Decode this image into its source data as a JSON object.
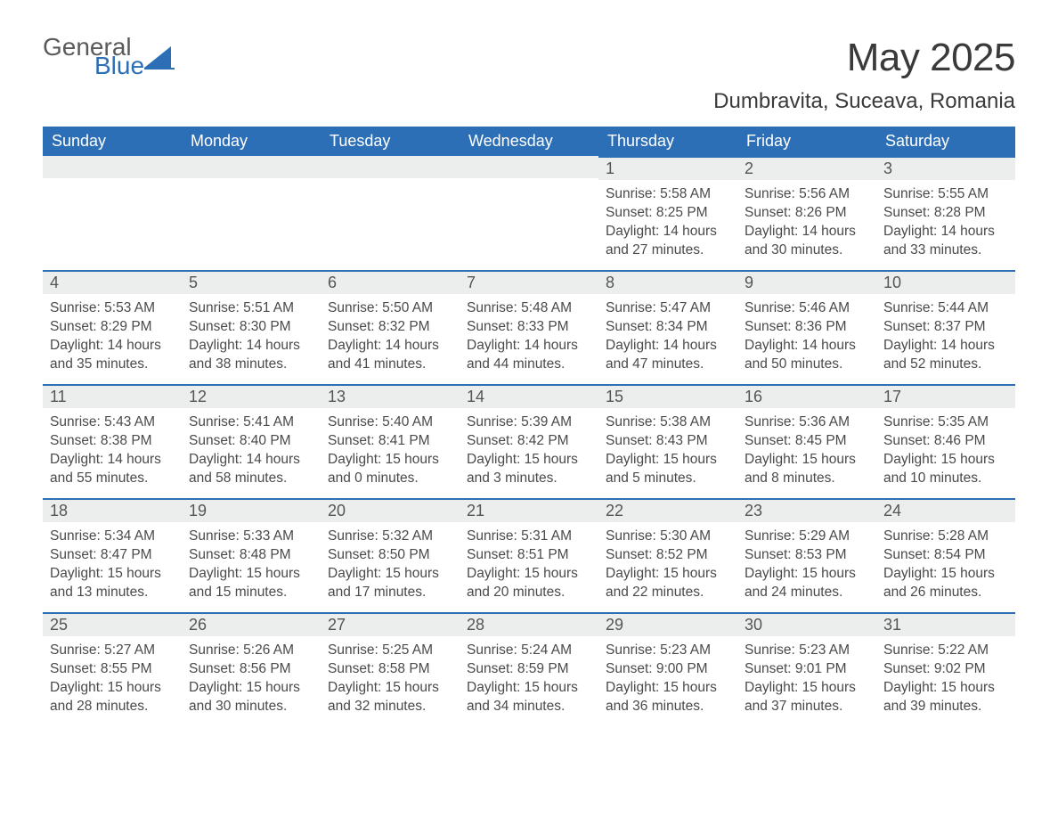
{
  "logo": {
    "general": "General",
    "blue": "Blue",
    "sail_color": "#2d6fb6"
  },
  "header": {
    "month_title": "May 2025",
    "location": "Dumbravita, Suceava, Romania"
  },
  "styling": {
    "header_bg": "#2d6fb6",
    "header_text_color": "#ffffff",
    "daynum_bg": "#eceded",
    "row_top_border": "#2d6fb6",
    "body_text_color": "#4a4a4a",
    "page_bg": "#ffffff",
    "title_fontsize": 44,
    "location_fontsize": 24,
    "dayheader_fontsize": 18,
    "daybody_fontsize": 15.5
  },
  "day_headers": [
    "Sunday",
    "Monday",
    "Tuesday",
    "Wednesday",
    "Thursday",
    "Friday",
    "Saturday"
  ],
  "leading_blanks": 4,
  "days": [
    {
      "n": "1",
      "sunrise": "Sunrise: 5:58 AM",
      "sunset": "Sunset: 8:25 PM",
      "day1": "Daylight: 14 hours",
      "day2": "and 27 minutes."
    },
    {
      "n": "2",
      "sunrise": "Sunrise: 5:56 AM",
      "sunset": "Sunset: 8:26 PM",
      "day1": "Daylight: 14 hours",
      "day2": "and 30 minutes."
    },
    {
      "n": "3",
      "sunrise": "Sunrise: 5:55 AM",
      "sunset": "Sunset: 8:28 PM",
      "day1": "Daylight: 14 hours",
      "day2": "and 33 minutes."
    },
    {
      "n": "4",
      "sunrise": "Sunrise: 5:53 AM",
      "sunset": "Sunset: 8:29 PM",
      "day1": "Daylight: 14 hours",
      "day2": "and 35 minutes."
    },
    {
      "n": "5",
      "sunrise": "Sunrise: 5:51 AM",
      "sunset": "Sunset: 8:30 PM",
      "day1": "Daylight: 14 hours",
      "day2": "and 38 minutes."
    },
    {
      "n": "6",
      "sunrise": "Sunrise: 5:50 AM",
      "sunset": "Sunset: 8:32 PM",
      "day1": "Daylight: 14 hours",
      "day2": "and 41 minutes."
    },
    {
      "n": "7",
      "sunrise": "Sunrise: 5:48 AM",
      "sunset": "Sunset: 8:33 PM",
      "day1": "Daylight: 14 hours",
      "day2": "and 44 minutes."
    },
    {
      "n": "8",
      "sunrise": "Sunrise: 5:47 AM",
      "sunset": "Sunset: 8:34 PM",
      "day1": "Daylight: 14 hours",
      "day2": "and 47 minutes."
    },
    {
      "n": "9",
      "sunrise": "Sunrise: 5:46 AM",
      "sunset": "Sunset: 8:36 PM",
      "day1": "Daylight: 14 hours",
      "day2": "and 50 minutes."
    },
    {
      "n": "10",
      "sunrise": "Sunrise: 5:44 AM",
      "sunset": "Sunset: 8:37 PM",
      "day1": "Daylight: 14 hours",
      "day2": "and 52 minutes."
    },
    {
      "n": "11",
      "sunrise": "Sunrise: 5:43 AM",
      "sunset": "Sunset: 8:38 PM",
      "day1": "Daylight: 14 hours",
      "day2": "and 55 minutes."
    },
    {
      "n": "12",
      "sunrise": "Sunrise: 5:41 AM",
      "sunset": "Sunset: 8:40 PM",
      "day1": "Daylight: 14 hours",
      "day2": "and 58 minutes."
    },
    {
      "n": "13",
      "sunrise": "Sunrise: 5:40 AM",
      "sunset": "Sunset: 8:41 PM",
      "day1": "Daylight: 15 hours",
      "day2": "and 0 minutes."
    },
    {
      "n": "14",
      "sunrise": "Sunrise: 5:39 AM",
      "sunset": "Sunset: 8:42 PM",
      "day1": "Daylight: 15 hours",
      "day2": "and 3 minutes."
    },
    {
      "n": "15",
      "sunrise": "Sunrise: 5:38 AM",
      "sunset": "Sunset: 8:43 PM",
      "day1": "Daylight: 15 hours",
      "day2": "and 5 minutes."
    },
    {
      "n": "16",
      "sunrise": "Sunrise: 5:36 AM",
      "sunset": "Sunset: 8:45 PM",
      "day1": "Daylight: 15 hours",
      "day2": "and 8 minutes."
    },
    {
      "n": "17",
      "sunrise": "Sunrise: 5:35 AM",
      "sunset": "Sunset: 8:46 PM",
      "day1": "Daylight: 15 hours",
      "day2": "and 10 minutes."
    },
    {
      "n": "18",
      "sunrise": "Sunrise: 5:34 AM",
      "sunset": "Sunset: 8:47 PM",
      "day1": "Daylight: 15 hours",
      "day2": "and 13 minutes."
    },
    {
      "n": "19",
      "sunrise": "Sunrise: 5:33 AM",
      "sunset": "Sunset: 8:48 PM",
      "day1": "Daylight: 15 hours",
      "day2": "and 15 minutes."
    },
    {
      "n": "20",
      "sunrise": "Sunrise: 5:32 AM",
      "sunset": "Sunset: 8:50 PM",
      "day1": "Daylight: 15 hours",
      "day2": "and 17 minutes."
    },
    {
      "n": "21",
      "sunrise": "Sunrise: 5:31 AM",
      "sunset": "Sunset: 8:51 PM",
      "day1": "Daylight: 15 hours",
      "day2": "and 20 minutes."
    },
    {
      "n": "22",
      "sunrise": "Sunrise: 5:30 AM",
      "sunset": "Sunset: 8:52 PM",
      "day1": "Daylight: 15 hours",
      "day2": "and 22 minutes."
    },
    {
      "n": "23",
      "sunrise": "Sunrise: 5:29 AM",
      "sunset": "Sunset: 8:53 PM",
      "day1": "Daylight: 15 hours",
      "day2": "and 24 minutes."
    },
    {
      "n": "24",
      "sunrise": "Sunrise: 5:28 AM",
      "sunset": "Sunset: 8:54 PM",
      "day1": "Daylight: 15 hours",
      "day2": "and 26 minutes."
    },
    {
      "n": "25",
      "sunrise": "Sunrise: 5:27 AM",
      "sunset": "Sunset: 8:55 PM",
      "day1": "Daylight: 15 hours",
      "day2": "and 28 minutes."
    },
    {
      "n": "26",
      "sunrise": "Sunrise: 5:26 AM",
      "sunset": "Sunset: 8:56 PM",
      "day1": "Daylight: 15 hours",
      "day2": "and 30 minutes."
    },
    {
      "n": "27",
      "sunrise": "Sunrise: 5:25 AM",
      "sunset": "Sunset: 8:58 PM",
      "day1": "Daylight: 15 hours",
      "day2": "and 32 minutes."
    },
    {
      "n": "28",
      "sunrise": "Sunrise: 5:24 AM",
      "sunset": "Sunset: 8:59 PM",
      "day1": "Daylight: 15 hours",
      "day2": "and 34 minutes."
    },
    {
      "n": "29",
      "sunrise": "Sunrise: 5:23 AM",
      "sunset": "Sunset: 9:00 PM",
      "day1": "Daylight: 15 hours",
      "day2": "and 36 minutes."
    },
    {
      "n": "30",
      "sunrise": "Sunrise: 5:23 AM",
      "sunset": "Sunset: 9:01 PM",
      "day1": "Daylight: 15 hours",
      "day2": "and 37 minutes."
    },
    {
      "n": "31",
      "sunrise": "Sunrise: 5:22 AM",
      "sunset": "Sunset: 9:02 PM",
      "day1": "Daylight: 15 hours",
      "day2": "and 39 minutes."
    }
  ]
}
